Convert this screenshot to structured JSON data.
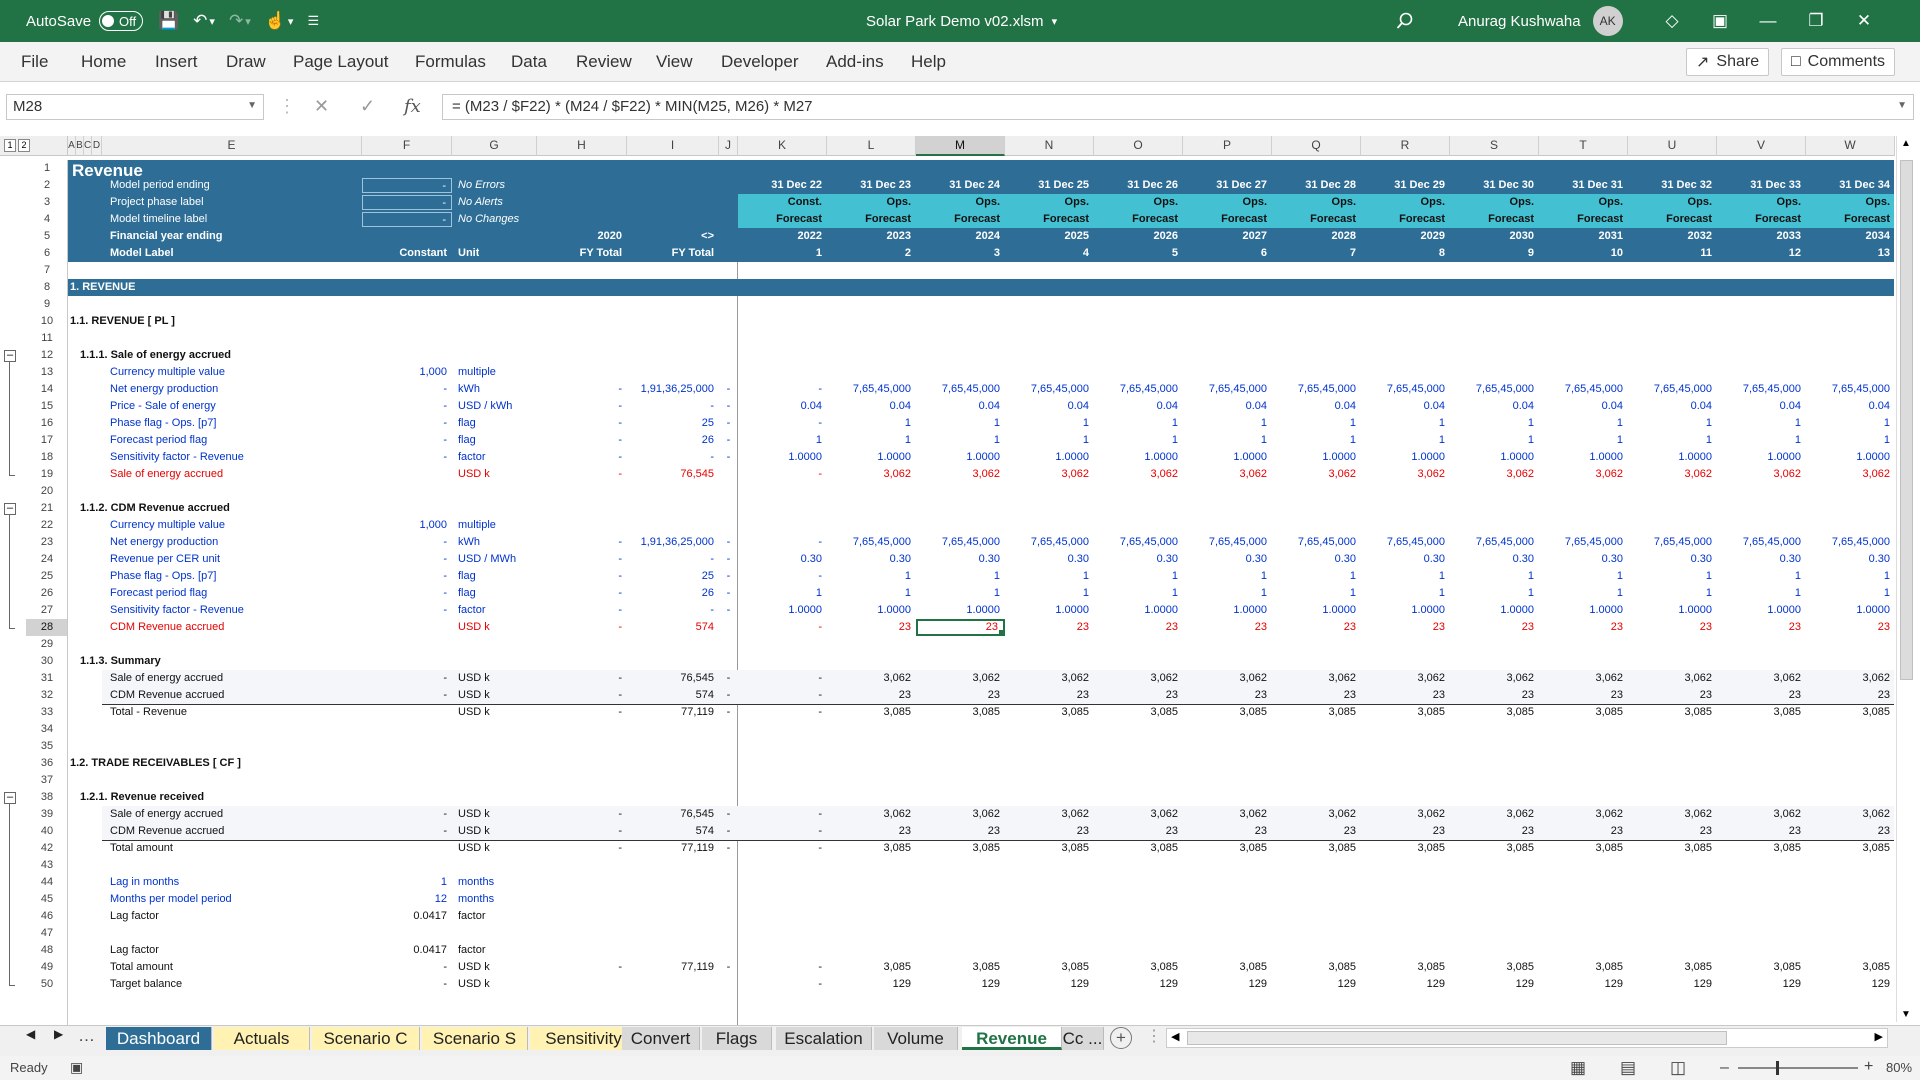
{
  "titlebar": {
    "autosave": "AutoSave",
    "autosave_state": "Off",
    "filename": "Solar Park Demo v02.xlsm",
    "user": "Anurag Kushwaha",
    "initials": "AK"
  },
  "menu": [
    "File",
    "Home",
    "Insert",
    "Draw",
    "Page Layout",
    "Formulas",
    "Data",
    "Review",
    "View",
    "Developer",
    "Add-ins",
    "Help"
  ],
  "share_label": "Share",
  "comments_label": "Comments",
  "formula_bar": {
    "name_box": "M28",
    "fx": "fx",
    "formula": "= (M23 / $F22) * (M24 / $F22) * MIN(M25, M26) * M27"
  },
  "outline_levels": [
    "1",
    "2"
  ],
  "columns": [
    "A",
    "B",
    "C",
    "D",
    "E",
    "F",
    "G",
    "H",
    "I",
    "J",
    "K",
    "L",
    "M",
    "N",
    "O",
    "P",
    "Q",
    "R",
    "S",
    "T",
    "U",
    "V",
    "W"
  ],
  "periods": {
    "dates": [
      "31 Dec 22",
      "31 Dec 23",
      "31 Dec 24",
      "31 Dec 25",
      "31 Dec 26",
      "31 Dec 27",
      "31 Dec 28",
      "31 Dec 29",
      "31 Dec 30",
      "31 Dec 31",
      "31 Dec 32",
      "31 Dec 33",
      "31 Dec 34"
    ],
    "phase": [
      "Const.",
      "Ops.",
      "Ops.",
      "Ops.",
      "Ops.",
      "Ops.",
      "Ops.",
      "Ops.",
      "Ops.",
      "Ops.",
      "Ops.",
      "Ops.",
      "Ops."
    ],
    "timeline": [
      "Forecast",
      "Forecast",
      "Forecast",
      "Forecast",
      "Forecast",
      "Forecast",
      "Forecast",
      "Forecast",
      "Forecast",
      "Forecast",
      "Forecast",
      "Forecast",
      "Forecast"
    ],
    "years": [
      "2022",
      "2023",
      "2024",
      "2025",
      "2026",
      "2027",
      "2028",
      "2029",
      "2030",
      "2031",
      "2032",
      "2033",
      "2034"
    ],
    "numbers": [
      "1",
      "2",
      "3",
      "4",
      "5",
      "6",
      "7",
      "8",
      "9",
      "10",
      "11",
      "12",
      "13"
    ]
  },
  "header": {
    "title": "Revenue",
    "rows": [
      {
        "label": "Model period ending",
        "f": "-",
        "g": "No Errors"
      },
      {
        "label": "Project phase label",
        "f": "-",
        "g": "No Alerts"
      },
      {
        "label": "Model timeline label",
        "f": "-",
        "g": "No Changes"
      }
    ],
    "fy_label": "Financial year ending",
    "fy_h": "2020",
    "fy_i": "<>",
    "model_label": "Model Label",
    "constant": "Constant",
    "unit": "Unit",
    "fy_total_h": "FY Total",
    "fy_total_i": "FY Total"
  },
  "rows": [
    {
      "n": "1"
    },
    {
      "n": "2"
    },
    {
      "n": "3"
    },
    {
      "n": "4"
    },
    {
      "n": "5"
    },
    {
      "n": "6"
    },
    {
      "n": "7"
    },
    {
      "n": "8",
      "t": "sec",
      "label": "1. REVENUE"
    },
    {
      "n": "9"
    },
    {
      "n": "10",
      "t": "h1",
      "label": "1.1. REVENUE [ PL ]"
    },
    {
      "n": "11"
    },
    {
      "n": "12",
      "t": "h2",
      "label": "1.1.1. Sale of energy accrued"
    },
    {
      "n": "13",
      "c": "blue",
      "label": "Currency multiple value",
      "f": "1,000",
      "g": "multiple"
    },
    {
      "n": "14",
      "c": "blue",
      "label": "Net energy production",
      "f": "-",
      "g": "kWh",
      "h": "-",
      "i": "1,91,36,25,000",
      "j": "-",
      "v": [
        "-",
        "7,65,45,000",
        "7,65,45,000",
        "7,65,45,000",
        "7,65,45,000",
        "7,65,45,000",
        "7,65,45,000",
        "7,65,45,000",
        "7,65,45,000",
        "7,65,45,000",
        "7,65,45,000",
        "7,65,45,000",
        "7,65,45,000"
      ]
    },
    {
      "n": "15",
      "c": "blue",
      "label": "Price - Sale of energy",
      "f": "-",
      "g": "USD / kWh",
      "h": "-",
      "i": "-",
      "j": "-",
      "v": [
        "0.04",
        "0.04",
        "0.04",
        "0.04",
        "0.04",
        "0.04",
        "0.04",
        "0.04",
        "0.04",
        "0.04",
        "0.04",
        "0.04",
        "0.04"
      ]
    },
    {
      "n": "16",
      "c": "blue",
      "label": "Phase flag - Ops. [p7]",
      "f": "-",
      "g": "flag",
      "h": "-",
      "i": "25",
      "j": "-",
      "v": [
        "-",
        "1",
        "1",
        "1",
        "1",
        "1",
        "1",
        "1",
        "1",
        "1",
        "1",
        "1",
        "1"
      ]
    },
    {
      "n": "17",
      "c": "blue",
      "label": "Forecast period flag",
      "f": "-",
      "g": "flag",
      "h": "-",
      "i": "26",
      "j": "-",
      "v": [
        "1",
        "1",
        "1",
        "1",
        "1",
        "1",
        "1",
        "1",
        "1",
        "1",
        "1",
        "1",
        "1"
      ]
    },
    {
      "n": "18",
      "c": "blue",
      "label": "Sensitivity factor - Revenue",
      "f": "-",
      "g": "factor",
      "h": "-",
      "i": "-",
      "j": "-",
      "v": [
        "1.0000",
        "1.0000",
        "1.0000",
        "1.0000",
        "1.0000",
        "1.0000",
        "1.0000",
        "1.0000",
        "1.0000",
        "1.0000",
        "1.0000",
        "1.0000",
        "1.0000"
      ]
    },
    {
      "n": "19",
      "c": "red",
      "label": "Sale of energy accrued",
      "f": "",
      "g": "USD k",
      "h": "-",
      "i": "76,545",
      "j": "",
      "v": [
        "-",
        "3,062",
        "3,062",
        "3,062",
        "3,062",
        "3,062",
        "3,062",
        "3,062",
        "3,062",
        "3,062",
        "3,062",
        "3,062",
        "3,062"
      ]
    },
    {
      "n": "20"
    },
    {
      "n": "21",
      "t": "h2",
      "label": "1.1.2. CDM Revenue accrued"
    },
    {
      "n": "22",
      "c": "blue",
      "label": "Currency multiple value",
      "f": "1,000",
      "g": "multiple"
    },
    {
      "n": "23",
      "c": "blue",
      "label": "Net energy production",
      "f": "-",
      "g": "kWh",
      "h": "-",
      "i": "1,91,36,25,000",
      "j": "-",
      "v": [
        "-",
        "7,65,45,000",
        "7,65,45,000",
        "7,65,45,000",
        "7,65,45,000",
        "7,65,45,000",
        "7,65,45,000",
        "7,65,45,000",
        "7,65,45,000",
        "7,65,45,000",
        "7,65,45,000",
        "7,65,45,000",
        "7,65,45,000"
      ]
    },
    {
      "n": "24",
      "c": "blue",
      "label": "Revenue per CER unit",
      "f": "-",
      "g": "USD / MWh",
      "h": "-",
      "i": "-",
      "j": "-",
      "v": [
        "0.30",
        "0.30",
        "0.30",
        "0.30",
        "0.30",
        "0.30",
        "0.30",
        "0.30",
        "0.30",
        "0.30",
        "0.30",
        "0.30",
        "0.30"
      ]
    },
    {
      "n": "25",
      "c": "blue",
      "label": "Phase flag - Ops. [p7]",
      "f": "-",
      "g": "flag",
      "h": "-",
      "i": "25",
      "j": "-",
      "v": [
        "-",
        "1",
        "1",
        "1",
        "1",
        "1",
        "1",
        "1",
        "1",
        "1",
        "1",
        "1",
        "1"
      ]
    },
    {
      "n": "26",
      "c": "blue",
      "label": "Forecast period flag",
      "f": "-",
      "g": "flag",
      "h": "-",
      "i": "26",
      "j": "-",
      "v": [
        "1",
        "1",
        "1",
        "1",
        "1",
        "1",
        "1",
        "1",
        "1",
        "1",
        "1",
        "1",
        "1"
      ]
    },
    {
      "n": "27",
      "c": "blue",
      "label": "Sensitivity factor - Revenue",
      "f": "-",
      "g": "factor",
      "h": "-",
      "i": "-",
      "j": "-",
      "v": [
        "1.0000",
        "1.0000",
        "1.0000",
        "1.0000",
        "1.0000",
        "1.0000",
        "1.0000",
        "1.0000",
        "1.0000",
        "1.0000",
        "1.0000",
        "1.0000",
        "1.0000"
      ]
    },
    {
      "n": "28",
      "c": "red",
      "label": "CDM Revenue accrued",
      "f": "",
      "g": "USD k",
      "h": "-",
      "i": "574",
      "j": "",
      "v": [
        "-",
        "23",
        "23",
        "23",
        "23",
        "23",
        "23",
        "23",
        "23",
        "23",
        "23",
        "23",
        "23"
      ],
      "sel": 2
    },
    {
      "n": "29"
    },
    {
      "n": "30",
      "t": "h2",
      "label": "1.1.3. Summary"
    },
    {
      "n": "31",
      "c": "blk",
      "label": "Sale of energy accrued",
      "f": "-",
      "g": "USD k",
      "h": "-",
      "i": "76,545",
      "j": "-",
      "v": [
        "-",
        "3,062",
        "3,062",
        "3,062",
        "3,062",
        "3,062",
        "3,062",
        "3,062",
        "3,062",
        "3,062",
        "3,062",
        "3,062",
        "3,062"
      ],
      "shade": true
    },
    {
      "n": "32",
      "c": "blk",
      "label": "CDM Revenue accrued",
      "f": "-",
      "g": "USD k",
      "h": "-",
      "i": "574",
      "j": "-",
      "v": [
        "-",
        "23",
        "23",
        "23",
        "23",
        "23",
        "23",
        "23",
        "23",
        "23",
        "23",
        "23",
        "23"
      ],
      "shade": true
    },
    {
      "n": "33",
      "c": "blk",
      "label": "Total - Revenue",
      "f": "",
      "g": "USD k",
      "h": "-",
      "i": "77,119",
      "j": "-",
      "v": [
        "-",
        "3,085",
        "3,085",
        "3,085",
        "3,085",
        "3,085",
        "3,085",
        "3,085",
        "3,085",
        "3,085",
        "3,085",
        "3,085",
        "3,085"
      ],
      "total": true
    },
    {
      "n": "34"
    },
    {
      "n": "35"
    },
    {
      "n": "36",
      "t": "h1",
      "label": "1.2. TRADE RECEIVABLES [ CF ]"
    },
    {
      "n": "37"
    },
    {
      "n": "38",
      "t": "h2",
      "label": "1.2.1. Revenue received"
    },
    {
      "n": "39",
      "c": "blk",
      "label": "Sale of energy accrued",
      "f": "-",
      "g": "USD k",
      "h": "-",
      "i": "76,545",
      "j": "-",
      "v": [
        "-",
        "3,062",
        "3,062",
        "3,062",
        "3,062",
        "3,062",
        "3,062",
        "3,062",
        "3,062",
        "3,062",
        "3,062",
        "3,062",
        "3,062"
      ],
      "shade": true
    },
    {
      "n": "40",
      "c": "blk",
      "label": "CDM Revenue accrued",
      "f": "-",
      "g": "USD k",
      "h": "-",
      "i": "574",
      "j": "-",
      "v": [
        "-",
        "23",
        "23",
        "23",
        "23",
        "23",
        "23",
        "23",
        "23",
        "23",
        "23",
        "23",
        "23"
      ],
      "shade": true
    },
    {
      "n": "41",
      "hidden": true
    },
    {
      "n": "42",
      "c": "blk",
      "label": "Total amount",
      "f": "",
      "g": "USD k",
      "h": "-",
      "i": "77,119",
      "j": "-",
      "v": [
        "-",
        "3,085",
        "3,085",
        "3,085",
        "3,085",
        "3,085",
        "3,085",
        "3,085",
        "3,085",
        "3,085",
        "3,085",
        "3,085",
        "3,085"
      ],
      "total": true
    },
    {
      "n": "43"
    },
    {
      "n": "44",
      "c": "blue",
      "label": "Lag in months",
      "f": "1",
      "g": "months"
    },
    {
      "n": "45",
      "c": "blue",
      "label": "Months per model period",
      "f": "12",
      "g": "months"
    },
    {
      "n": "46",
      "c": "blk",
      "label": "Lag factor",
      "f": "0.0417",
      "g": "factor"
    },
    {
      "n": "47"
    },
    {
      "n": "48",
      "c": "blk",
      "label": "Lag factor",
      "f": "0.0417",
      "g": "factor"
    },
    {
      "n": "49",
      "c": "blk",
      "label": "Total amount",
      "f": "-",
      "g": "USD k",
      "h": "-",
      "i": "77,119",
      "j": "-",
      "v": [
        "-",
        "3,085",
        "3,085",
        "3,085",
        "3,085",
        "3,085",
        "3,085",
        "3,085",
        "3,085",
        "3,085",
        "3,085",
        "3,085",
        "3,085"
      ]
    },
    {
      "n": "50",
      "c": "blk",
      "label": "Target balance",
      "f": "-",
      "g": "USD k",
      "h": "",
      "i": "",
      "j": "",
      "v": [
        "-",
        "129",
        "129",
        "129",
        "129",
        "129",
        "129",
        "129",
        "129",
        "129",
        "129",
        "129",
        "129"
      ]
    }
  ],
  "sheet_tabs": [
    {
      "label": "Dashboard",
      "style": "dash"
    },
    {
      "label": "Actuals",
      "style": "yellow"
    },
    {
      "label": "Scenario C",
      "style": "yellow"
    },
    {
      "label": "Scenario S",
      "style": "yellow"
    },
    {
      "label": "Sensitivity",
      "style": "yellow"
    },
    {
      "label": "Convert",
      "style": "grey"
    },
    {
      "label": "Flags",
      "style": "grey"
    },
    {
      "label": "Escalation",
      "style": "grey"
    },
    {
      "label": "Volume",
      "style": "grey"
    },
    {
      "label": "Revenue",
      "style": "active"
    },
    {
      "label": "Cc ...",
      "style": "grey"
    }
  ],
  "status": {
    "ready": "Ready",
    "zoom": "80%"
  }
}
